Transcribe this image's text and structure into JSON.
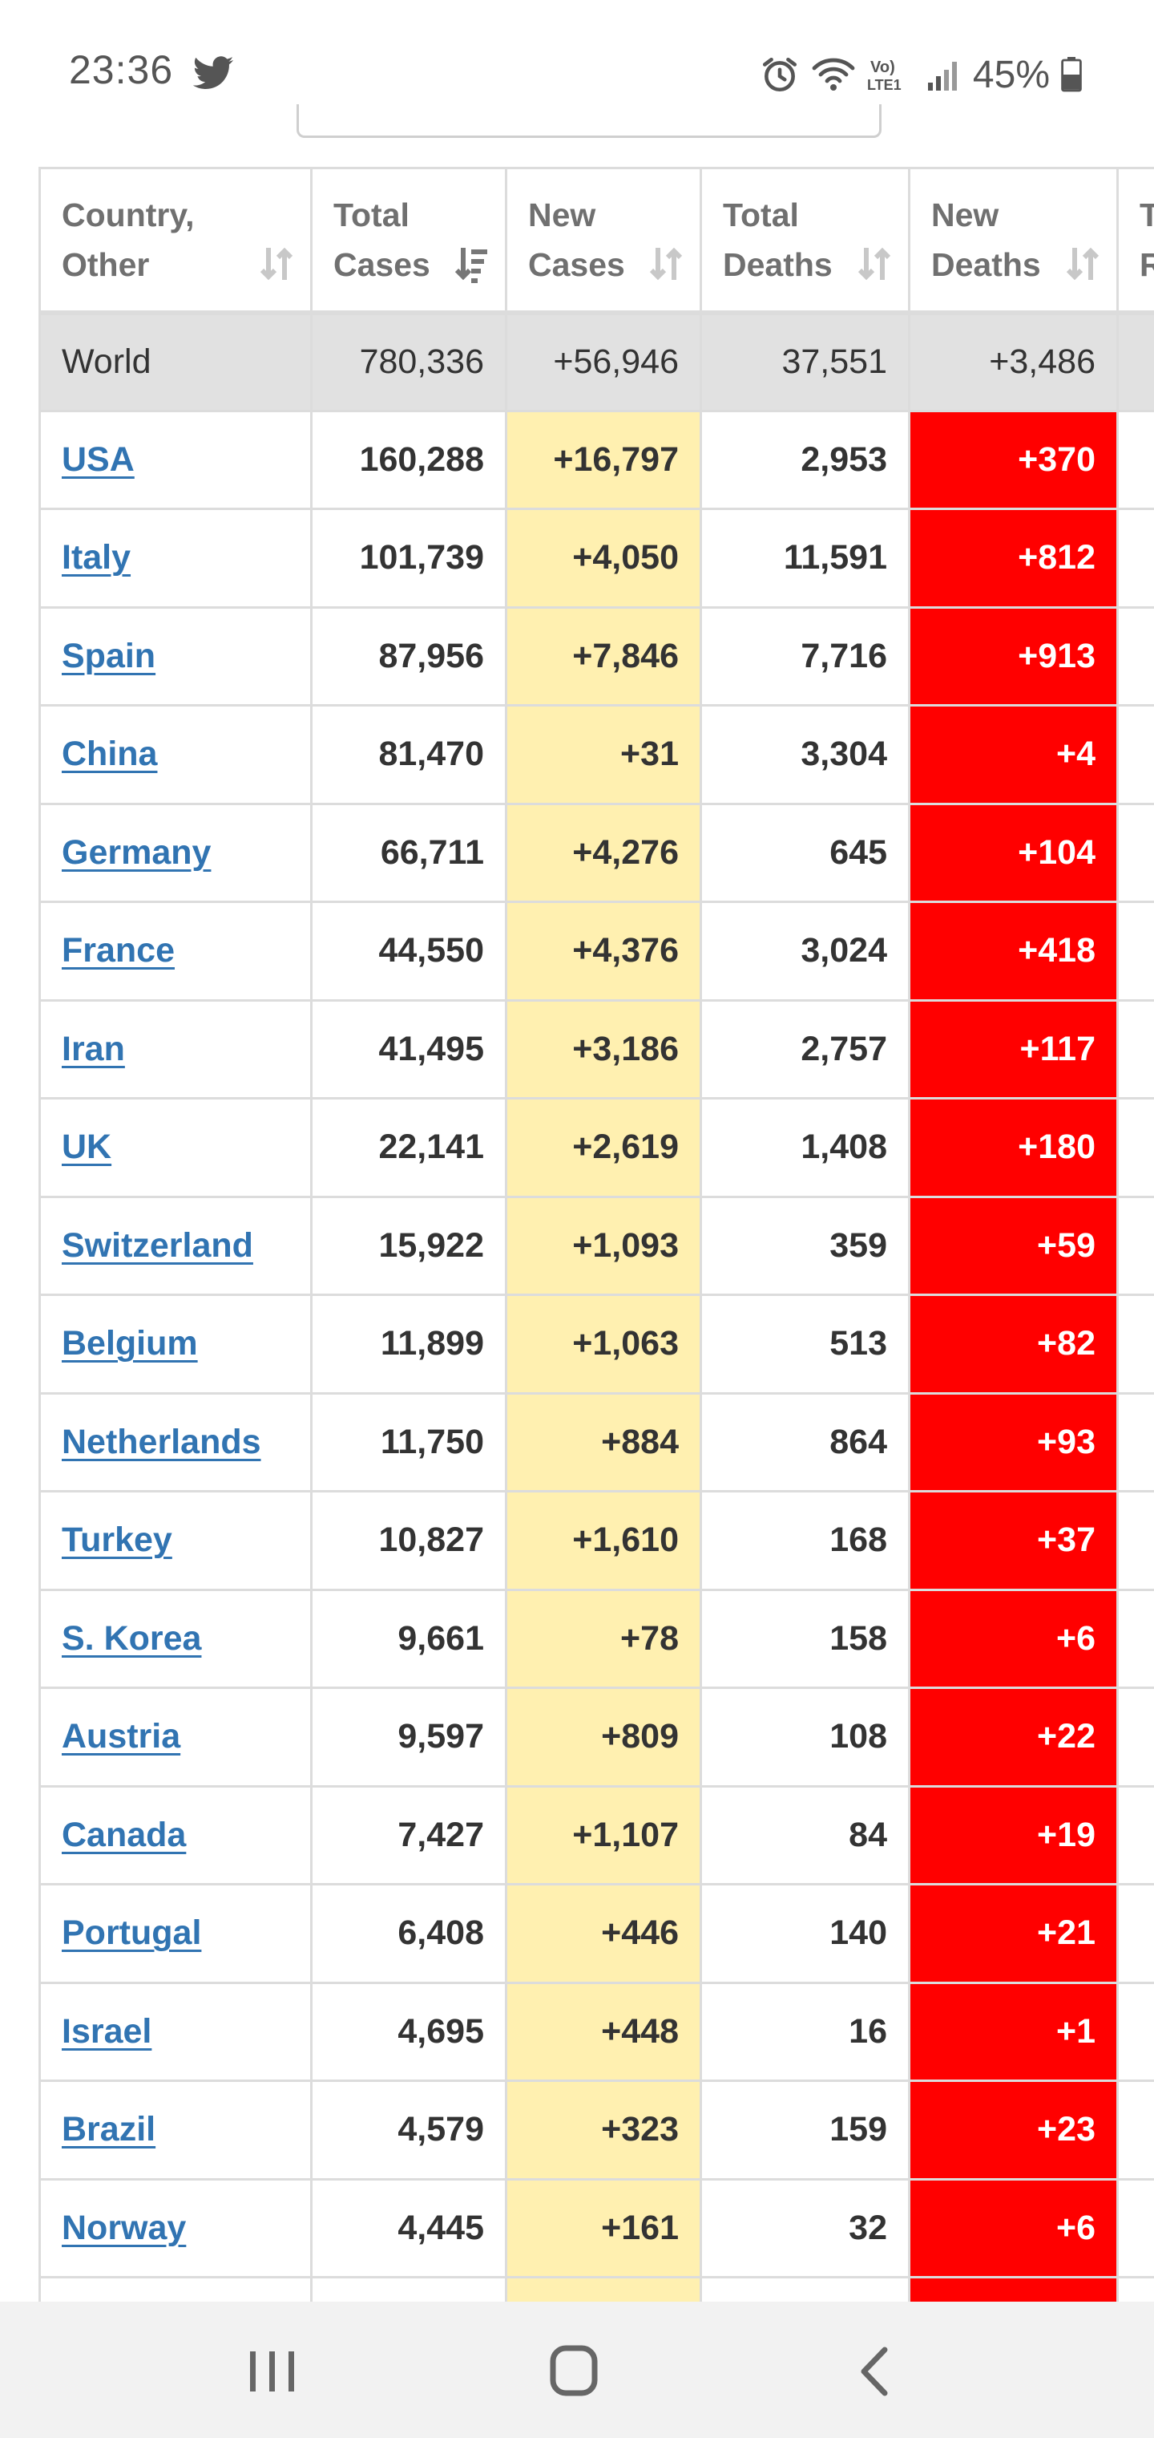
{
  "status_bar": {
    "time": "23:36",
    "battery": "45%",
    "icons": [
      "twitter-icon",
      "alarm-icon",
      "wifi-icon",
      "volte-icon",
      "signal-icon",
      "battery-icon"
    ],
    "volte_line1": "Vo)",
    "volte_line2": "LTE1"
  },
  "table": {
    "headers": [
      {
        "line1": "Country,",
        "line2": "Other"
      },
      {
        "line1": "Total",
        "line2": "Cases"
      },
      {
        "line1": "New",
        "line2": "Cases"
      },
      {
        "line1": "Total",
        "line2": "Deaths"
      },
      {
        "line1": "New",
        "line2": "Deaths"
      },
      {
        "line1": "T",
        "line2": "R"
      }
    ],
    "world": {
      "country": "World",
      "total_cases": "780,336",
      "new_cases": "+56,946",
      "total_deaths": "37,551",
      "new_deaths": "+3,486"
    },
    "rows": [
      {
        "country": "USA",
        "total_cases": "160,288",
        "new_cases": "+16,797",
        "total_deaths": "2,953",
        "new_deaths": "+370"
      },
      {
        "country": "Italy",
        "total_cases": "101,739",
        "new_cases": "+4,050",
        "total_deaths": "11,591",
        "new_deaths": "+812"
      },
      {
        "country": "Spain",
        "total_cases": "87,956",
        "new_cases": "+7,846",
        "total_deaths": "7,716",
        "new_deaths": "+913"
      },
      {
        "country": "China",
        "total_cases": "81,470",
        "new_cases": "+31",
        "total_deaths": "3,304",
        "new_deaths": "+4"
      },
      {
        "country": "Germany",
        "total_cases": "66,711",
        "new_cases": "+4,276",
        "total_deaths": "645",
        "new_deaths": "+104"
      },
      {
        "country": "France",
        "total_cases": "44,550",
        "new_cases": "+4,376",
        "total_deaths": "3,024",
        "new_deaths": "+418"
      },
      {
        "country": "Iran",
        "total_cases": "41,495",
        "new_cases": "+3,186",
        "total_deaths": "2,757",
        "new_deaths": "+117"
      },
      {
        "country": "UK",
        "total_cases": "22,141",
        "new_cases": "+2,619",
        "total_deaths": "1,408",
        "new_deaths": "+180"
      },
      {
        "country": "Switzerland",
        "total_cases": "15,922",
        "new_cases": "+1,093",
        "total_deaths": "359",
        "new_deaths": "+59"
      },
      {
        "country": "Belgium",
        "total_cases": "11,899",
        "new_cases": "+1,063",
        "total_deaths": "513",
        "new_deaths": "+82"
      },
      {
        "country": "Netherlands",
        "total_cases": "11,750",
        "new_cases": "+884",
        "total_deaths": "864",
        "new_deaths": "+93"
      },
      {
        "country": "Turkey",
        "total_cases": "10,827",
        "new_cases": "+1,610",
        "total_deaths": "168",
        "new_deaths": "+37"
      },
      {
        "country": "S. Korea",
        "total_cases": "9,661",
        "new_cases": "+78",
        "total_deaths": "158",
        "new_deaths": "+6"
      },
      {
        "country": "Austria",
        "total_cases": "9,597",
        "new_cases": "+809",
        "total_deaths": "108",
        "new_deaths": "+22"
      },
      {
        "country": "Canada",
        "total_cases": "7,427",
        "new_cases": "+1,107",
        "total_deaths": "84",
        "new_deaths": "+19"
      },
      {
        "country": "Portugal",
        "total_cases": "6,408",
        "new_cases": "+446",
        "total_deaths": "140",
        "new_deaths": "+21"
      },
      {
        "country": "Israel",
        "total_cases": "4,695",
        "new_cases": "+448",
        "total_deaths": "16",
        "new_deaths": "+1"
      },
      {
        "country": "Brazil",
        "total_cases": "4,579",
        "new_cases": "+323",
        "total_deaths": "159",
        "new_deaths": "+23"
      },
      {
        "country": "Norway",
        "total_cases": "4,445",
        "new_cases": "+161",
        "total_deaths": "32",
        "new_deaths": "+6"
      },
      {
        "country": "",
        "total_cases": "",
        "new_cases": "",
        "total_deaths": "",
        "new_deaths": ""
      }
    ],
    "colors": {
      "new_cases_bg": "#fff0b0",
      "new_deaths_bg": "#ff0000",
      "world_bg": "#e1e1e1",
      "link": "#3174b2"
    }
  },
  "nav_bar": {
    "buttons": [
      "recent-apps-icon",
      "home-icon",
      "back-icon"
    ]
  }
}
